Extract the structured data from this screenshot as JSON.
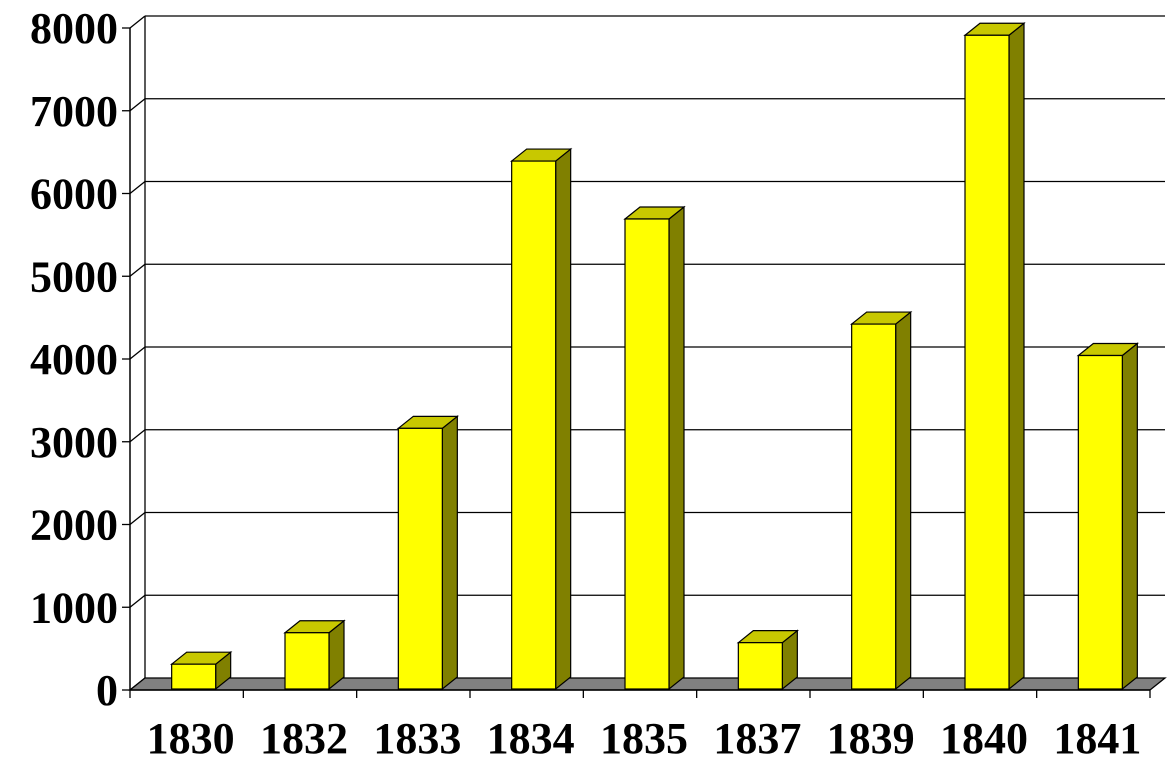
{
  "chart_data": {
    "type": "bar",
    "title": "",
    "xlabel": "",
    "ylabel": "",
    "categories": [
      "1830",
      "1832",
      "1833",
      "1834",
      "1835",
      "1837",
      "1839",
      "1840",
      "1841"
    ],
    "values": [
      300,
      680,
      3150,
      6380,
      5680,
      560,
      4410,
      7900,
      4030
    ],
    "ylim": [
      0,
      8000
    ],
    "yticks": [
      "0",
      "1000",
      "2000",
      "3000",
      "4000",
      "5000",
      "6000",
      "7000",
      "8000"
    ],
    "grid": true,
    "legend": "none",
    "style": "3d-column"
  },
  "colors": {
    "bar_front": "#FFFF00",
    "bar_top": "#C8C800",
    "bar_side": "#808000",
    "floor": "#808080",
    "grid": "#000000",
    "background": "#FFFFFF"
  }
}
